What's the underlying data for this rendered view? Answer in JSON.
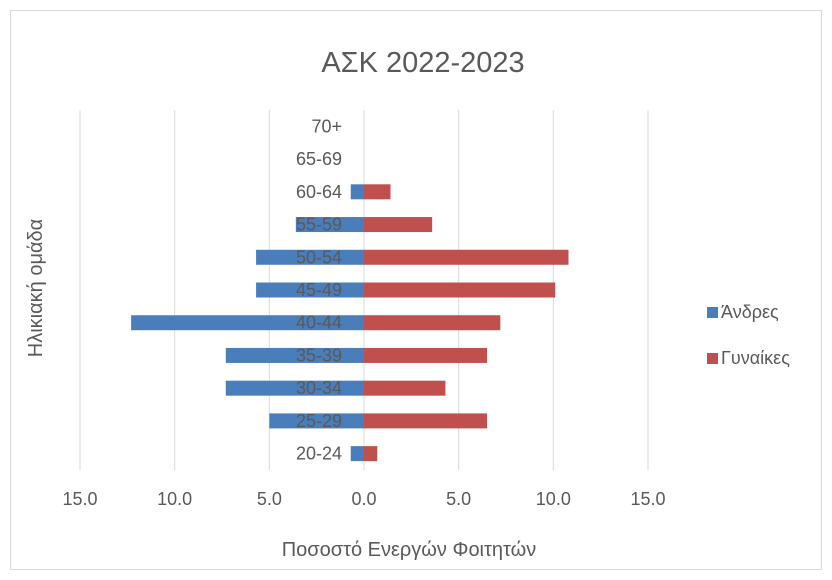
{
  "chart_data": {
    "type": "bar",
    "orientation": "horizontal",
    "layout": "population-pyramid",
    "title": "ΑΣΚ 2022-2023",
    "xlabel": "Ποσοστό Ενεργών Φοιτητών",
    "ylabel": "Ηλικιακή ομάδα",
    "categories": [
      "20-24",
      "25-29",
      "30-34",
      "35-39",
      "40-44",
      "45-49",
      "50-54",
      "55-59",
      "60-64",
      "65-69",
      "70+"
    ],
    "series": [
      {
        "name": "Άνδρες",
        "color": "#4a7ebb",
        "side": "left",
        "values": [
          0.7,
          5.0,
          7.3,
          7.3,
          12.3,
          5.7,
          5.7,
          3.6,
          0.7,
          0,
          0
        ]
      },
      {
        "name": "Γυναίκες",
        "color": "#c0504d",
        "side": "right",
        "values": [
          0.7,
          6.5,
          4.3,
          6.5,
          7.2,
          10.1,
          10.8,
          3.6,
          1.4,
          0,
          0
        ]
      }
    ],
    "xticks": [
      "15.0",
      "10.0",
      "5.0",
      "0.0",
      "5.0",
      "10.0",
      "15.0"
    ],
    "xlim": [
      -15,
      15
    ],
    "grid": "vertical",
    "legend_position": "right"
  }
}
